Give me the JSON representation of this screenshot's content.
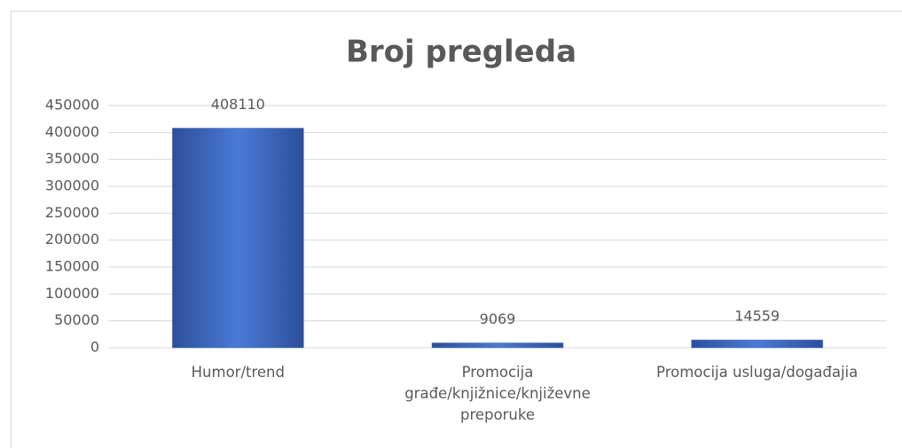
{
  "chart_data": {
    "type": "bar",
    "title": "Broj pregleda",
    "categories": [
      "Humor/trend",
      "Promocija građe/knjižnice/književne preporuke",
      "Promocija usluga/događajia"
    ],
    "values": [
      408110,
      9069,
      14559
    ],
    "color": "#3b66c0",
    "ylim": [
      0,
      450000
    ],
    "yticks": [
      0,
      50000,
      100000,
      150000,
      200000,
      250000,
      300000,
      350000,
      400000,
      450000
    ],
    "grid": true,
    "show_value_labels": true
  }
}
